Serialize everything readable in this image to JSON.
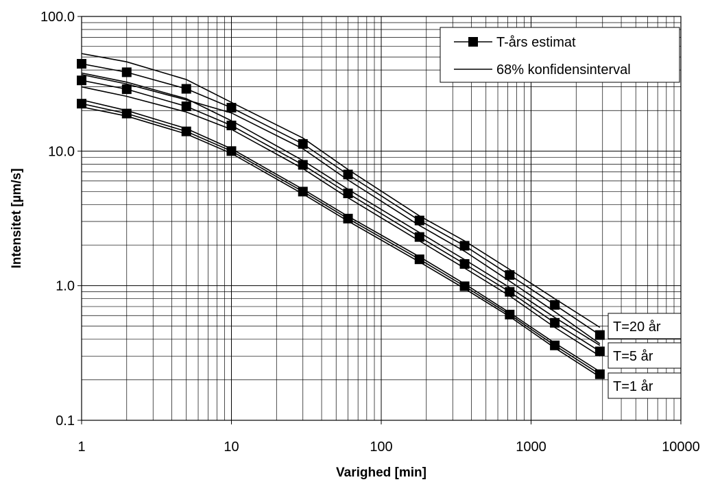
{
  "chart_data": {
    "type": "line",
    "title": "",
    "xlabel": "Varighed [min]",
    "ylabel": "Intensitet [µm/s]",
    "xscale": "log",
    "yscale": "log",
    "xlim": [
      1,
      10000
    ],
    "ylim": [
      0.1,
      100
    ],
    "grid": true,
    "legend_position": "top-right",
    "x_tick_labels": [
      "1",
      "10",
      "100",
      "1000",
      "10000"
    ],
    "y_tick_labels": [
      "100.0",
      "10.0",
      "1.0",
      "0.1"
    ],
    "legend": [
      {
        "label": "T-års estimat",
        "marker": "square"
      },
      {
        "label": "68% konfidensinterval",
        "marker": "none"
      }
    ],
    "x": [
      1,
      2,
      5,
      10,
      30,
      60,
      180,
      360,
      720,
      1440,
      2880
    ],
    "series": [
      {
        "group": "T=20 år",
        "role": "estimate",
        "marker": "square",
        "values": [
          44.5,
          38.5,
          29,
          21,
          11.3,
          6.7,
          3.05,
          1.98,
          1.2,
          0.72,
          0.43
        ]
      },
      {
        "group": "T=20 år",
        "role": "upper",
        "values": [
          53,
          46,
          34,
          23,
          12.5,
          7.3,
          3.3,
          2.15,
          1.32,
          0.8,
          0.49
        ]
      },
      {
        "group": "T=20 år",
        "role": "lower",
        "values": [
          37,
          31.5,
          24,
          19.2,
          10.4,
          6.1,
          2.8,
          1.8,
          1.08,
          0.64,
          0.37
        ]
      },
      {
        "group": "T=5 år",
        "role": "estimate",
        "marker": "square",
        "values": [
          33.5,
          28.8,
          21.5,
          15.5,
          7.9,
          4.85,
          2.3,
          1.45,
          0.9,
          0.53,
          0.325
        ]
      },
      {
        "group": "T=5 år",
        "role": "upper",
        "values": [
          38,
          32.5,
          24.5,
          16.8,
          8.5,
          5.2,
          2.48,
          1.56,
          0.97,
          0.58,
          0.36
        ]
      },
      {
        "group": "T=5 år",
        "role": "lower",
        "values": [
          30,
          25.5,
          19.5,
          14.5,
          7.4,
          4.5,
          2.15,
          1.35,
          0.84,
          0.49,
          0.3
        ]
      },
      {
        "group": "T=1 år",
        "role": "estimate",
        "marker": "square",
        "values": [
          22.5,
          19,
          14,
          10,
          5,
          3.15,
          1.57,
          0.99,
          0.61,
          0.36,
          0.22
        ]
      },
      {
        "group": "T=1 år",
        "role": "upper",
        "values": [
          24,
          20,
          14.7,
          10.4,
          5.2,
          3.28,
          1.64,
          1.03,
          0.63,
          0.375,
          0.23
        ]
      },
      {
        "group": "T=1 år",
        "role": "lower",
        "values": [
          21.3,
          18.2,
          13.4,
          9.6,
          4.8,
          3.02,
          1.5,
          0.95,
          0.59,
          0.345,
          0.21
        ]
      }
    ],
    "annotations": [
      "T=20 år",
      "T=5 år",
      "T=1 år"
    ]
  }
}
